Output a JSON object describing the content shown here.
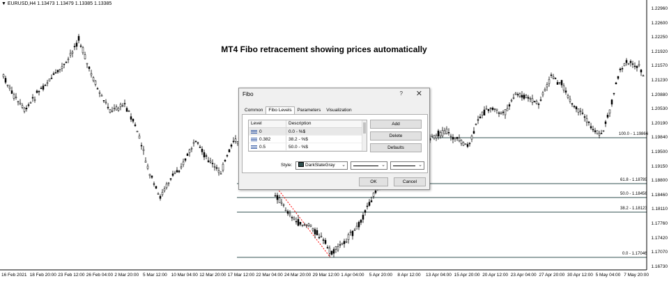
{
  "window": {
    "symbol_info": "▼ EURUSD,H4  1.13473 1.13479 1.13385 1.13385",
    "title": "MT4 Fibo retracement showing prices automatically"
  },
  "colors": {
    "candle": "#000000",
    "fibo_line": "#2f4f4f",
    "trend_line": "#ff0000",
    "grid_axis": "#000000"
  },
  "price_axis": [
    "1.22960",
    "1.22600",
    "1.22250",
    "1.21920",
    "1.21570",
    "1.21230",
    "1.20880",
    "1.20530",
    "1.20190",
    "1.19840",
    "1.19500",
    "1.19150",
    "1.18800",
    "1.18460",
    "1.18110",
    "1.17760",
    "1.17420",
    "1.17070",
    "1.16730"
  ],
  "time_axis": [
    "16 Feb 2021",
    "18 Feb 20:00",
    "23 Feb 12:00",
    "26 Feb 04:00",
    "2 Mar 20:00",
    "5 Mar 12:00",
    "10 Mar 04:00",
    "12 Mar 20:00",
    "17 Mar 12:00",
    "22 Mar 04:00",
    "24 Mar 20:00",
    "29 Mar 12:00",
    "1 Apr 04:00",
    "5 Apr 20:00",
    "8 Apr 12:00",
    "13 Apr 04:00",
    "15 Apr 20:00",
    "20 Apr 12:00",
    "23 Apr 04:00",
    "27 Apr 20:00",
    "30 Apr 12:00",
    "5 May 04:00",
    "7 May 20:00"
  ],
  "fibo_levels": [
    {
      "label": "100.0 - 1.19866"
    },
    {
      "label": "61.8 - 1.18789"
    },
    {
      "label": "50.0 - 1.18456"
    },
    {
      "label": "38.2 - 1.18123"
    },
    {
      "label": "0.0 - 1.17046"
    }
  ],
  "dialog": {
    "title": "Fibo",
    "help": "?",
    "close": "✕",
    "tabs": [
      "Common",
      "Fibo Levels",
      "Parameters",
      "Visualization"
    ],
    "active_tab": "Fibo Levels",
    "table": {
      "headers": [
        "Level",
        "Description"
      ],
      "rows": [
        {
          "level": "0",
          "description": "0.0 - %$"
        },
        {
          "level": "0.382",
          "description": "38.2 - %$"
        },
        {
          "level": "0.5",
          "description": "50.0 - %$"
        }
      ]
    },
    "add_label": "Add",
    "delete_label": "Delete",
    "defaults_label": "Defaults",
    "style_label": "Style:",
    "color_value": "DarkSlateGray",
    "ok_label": "OK",
    "cancel_label": "Cancel"
  }
}
